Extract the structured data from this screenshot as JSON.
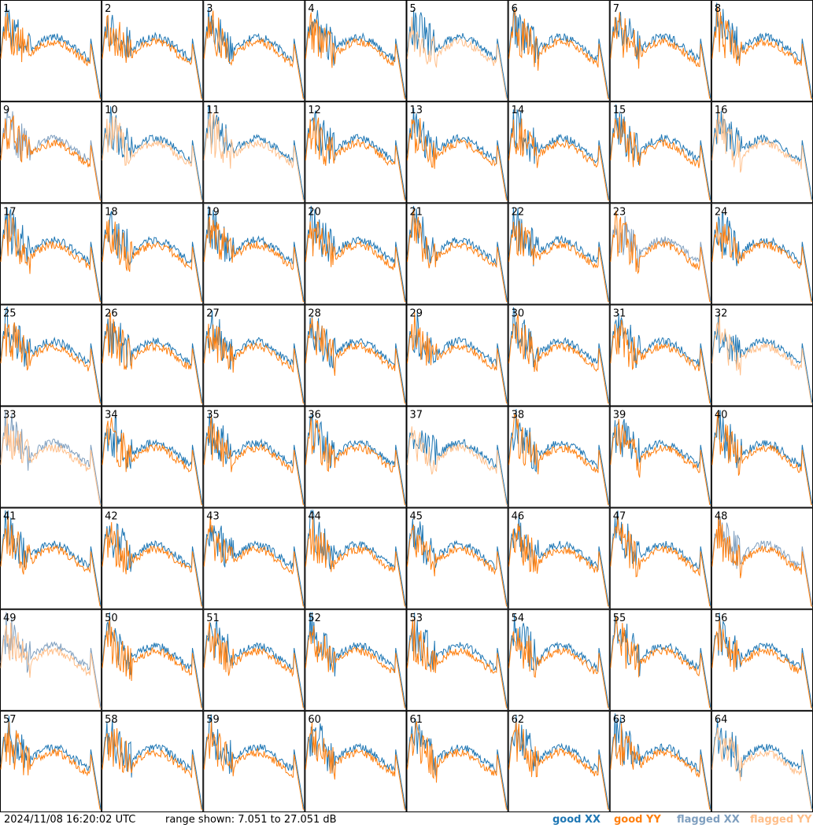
{
  "footer": {
    "timestamp": "2024/11/08 16:20:02 UTC",
    "range_text": "range shown: 7.051 to 27.051 dB"
  },
  "legend": [
    {
      "label": "good XX",
      "color": "#1f77b4"
    },
    {
      "label": "good YY",
      "color": "#ff7f0e"
    },
    {
      "label": "flagged XX",
      "color": "#7f9fbf"
    },
    {
      "label": "flagged YY",
      "color": "#ffbf8a"
    }
  ],
  "chart_data": {
    "type": "line",
    "range_db": [
      7.051,
      27.051
    ],
    "grid_rows": 8,
    "grid_cols": 8,
    "colors": {
      "good_xx": "#1f77b4",
      "good_yy": "#ff7f0e",
      "flagged_xx": "#7f9fbf",
      "flagged_yy": "#ffbf8a"
    },
    "tiles": [
      {
        "id": "1",
        "xx": "good",
        "yy": "good"
      },
      {
        "id": "2",
        "xx": "good",
        "yy": "good"
      },
      {
        "id": "3",
        "xx": "good",
        "yy": "good"
      },
      {
        "id": "4",
        "xx": "good",
        "yy": "good"
      },
      {
        "id": "5",
        "xx": "good",
        "yy": "flagged"
      },
      {
        "id": "6",
        "xx": "good",
        "yy": "good"
      },
      {
        "id": "7",
        "xx": "good",
        "yy": "good"
      },
      {
        "id": "8",
        "xx": "good",
        "yy": "good"
      },
      {
        "id": "9",
        "xx": "flagged",
        "yy": "good"
      },
      {
        "id": "10",
        "xx": "good",
        "yy": "flagged"
      },
      {
        "id": "11",
        "xx": "good",
        "yy": "flagged"
      },
      {
        "id": "12",
        "xx": "good",
        "yy": "good"
      },
      {
        "id": "13",
        "xx": "good",
        "yy": "good"
      },
      {
        "id": "14",
        "xx": "good",
        "yy": "good"
      },
      {
        "id": "15",
        "xx": "good",
        "yy": "good"
      },
      {
        "id": "16",
        "xx": "good",
        "yy": "flagged"
      },
      {
        "id": "17",
        "xx": "good",
        "yy": "good"
      },
      {
        "id": "18",
        "xx": "good",
        "yy": "good"
      },
      {
        "id": "19",
        "xx": "good",
        "yy": "good"
      },
      {
        "id": "20",
        "xx": "good",
        "yy": "good"
      },
      {
        "id": "21",
        "xx": "good",
        "yy": "good"
      },
      {
        "id": "22",
        "xx": "good",
        "yy": "good"
      },
      {
        "id": "23",
        "xx": "flagged",
        "yy": "good"
      },
      {
        "id": "24",
        "xx": "good",
        "yy": "good"
      },
      {
        "id": "25",
        "xx": "good",
        "yy": "good"
      },
      {
        "id": "26",
        "xx": "good",
        "yy": "good"
      },
      {
        "id": "27",
        "xx": "good",
        "yy": "good"
      },
      {
        "id": "28",
        "xx": "good",
        "yy": "good"
      },
      {
        "id": "29",
        "xx": "good",
        "yy": "good"
      },
      {
        "id": "30",
        "xx": "good",
        "yy": "good"
      },
      {
        "id": "31",
        "xx": "good",
        "yy": "good"
      },
      {
        "id": "32",
        "xx": "good",
        "yy": "flagged"
      },
      {
        "id": "33",
        "xx": "flagged",
        "yy": "flagged"
      },
      {
        "id": "34",
        "xx": "good",
        "yy": "good"
      },
      {
        "id": "35",
        "xx": "good",
        "yy": "good"
      },
      {
        "id": "36",
        "xx": "good",
        "yy": "good"
      },
      {
        "id": "37",
        "xx": "good",
        "yy": "flagged"
      },
      {
        "id": "38",
        "xx": "good",
        "yy": "good"
      },
      {
        "id": "39",
        "xx": "good",
        "yy": "good"
      },
      {
        "id": "40",
        "xx": "good",
        "yy": "good"
      },
      {
        "id": "41",
        "xx": "good",
        "yy": "good"
      },
      {
        "id": "42",
        "xx": "good",
        "yy": "good"
      },
      {
        "id": "43",
        "xx": "good",
        "yy": "good"
      },
      {
        "id": "44",
        "xx": "good",
        "yy": "good"
      },
      {
        "id": "45",
        "xx": "good",
        "yy": "good"
      },
      {
        "id": "46",
        "xx": "good",
        "yy": "good"
      },
      {
        "id": "47",
        "xx": "good",
        "yy": "good"
      },
      {
        "id": "48",
        "xx": "flagged",
        "yy": "good"
      },
      {
        "id": "49",
        "xx": "flagged",
        "yy": "flagged"
      },
      {
        "id": "50",
        "xx": "good",
        "yy": "good"
      },
      {
        "id": "51",
        "xx": "good",
        "yy": "good"
      },
      {
        "id": "52",
        "xx": "good",
        "yy": "good"
      },
      {
        "id": "53",
        "xx": "good",
        "yy": "good"
      },
      {
        "id": "54",
        "xx": "good",
        "yy": "good"
      },
      {
        "id": "55",
        "xx": "good",
        "yy": "good"
      },
      {
        "id": "56",
        "xx": "good",
        "yy": "good"
      },
      {
        "id": "57",
        "xx": "good",
        "yy": "good"
      },
      {
        "id": "58",
        "xx": "good",
        "yy": "good"
      },
      {
        "id": "59",
        "xx": "good",
        "yy": "good"
      },
      {
        "id": "60",
        "xx": "good",
        "yy": "good"
      },
      {
        "id": "61",
        "xx": "good",
        "yy": "good"
      },
      {
        "id": "62",
        "xx": "good",
        "yy": "good"
      },
      {
        "id": "63",
        "xx": "good",
        "yy": "good"
      },
      {
        "id": "64",
        "xx": "good",
        "yy": "flagged"
      }
    ]
  }
}
